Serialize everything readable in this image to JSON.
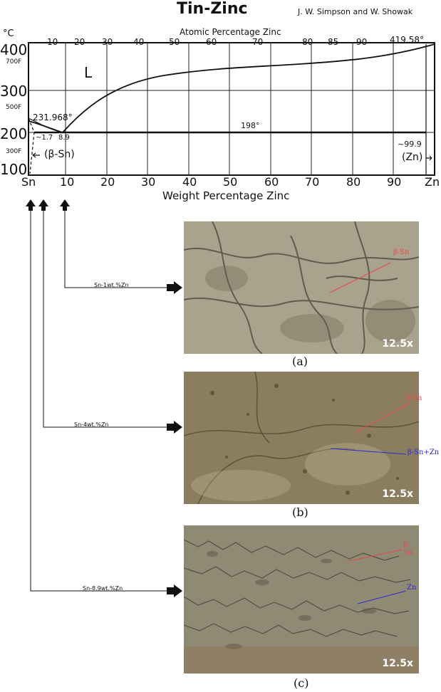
{
  "phase_diagram": {
    "title": "Tin-Zinc",
    "authors": "J. W. Simpson and W. Showak",
    "top_axis_label": "Atomic Percentage Zinc",
    "bottom_axis_label": "Weight Percentage Zinc",
    "top_ticks": [
      "10",
      "20",
      "30",
      "40",
      "50",
      "60",
      "70",
      "80",
      "85",
      "90"
    ],
    "bottom_ticks": [
      "Sn",
      "10",
      "20",
      "30",
      "40",
      "50",
      "60",
      "70",
      "80",
      "90",
      "Zn"
    ],
    "left_ticks": [
      "400",
      "300",
      "200",
      "100"
    ],
    "unit_celsius": "°C",
    "fahrenheit_ticks": [
      "700F",
      "500F",
      "300F"
    ],
    "labels": {
      "liquid": "L",
      "sn_melting": "231.968°",
      "zn_melting": "419.58°",
      "eutectic_temp": "198°",
      "sn_solvus": "~1.7",
      "eutectic_comp": "8.9",
      "zn_solvus": "~99.9",
      "beta_sn_phase": "(β-Sn)",
      "zn_phase": "(Zn)"
    }
  },
  "alloys": [
    {
      "label": "Sn-1wt.%Zn"
    },
    {
      "label": "Sn-4wt.%Zn"
    },
    {
      "label": "Sn-8.9wt.%Zn"
    }
  ],
  "micrographs": [
    {
      "caption": "(a)",
      "magnification": "12.5x",
      "annotations": [
        "β-Sn"
      ]
    },
    {
      "caption": "(b)",
      "magnification": "12.5x",
      "annotations": [
        "β-Sn",
        "β-Sn+Zn"
      ]
    },
    {
      "caption": "(c)",
      "magnification": "12.5x",
      "annotations": [
        "β-Sn",
        "Zn"
      ]
    }
  ],
  "colors": {
    "annotation_red": "#e8474b",
    "annotation_blue": "#2a2ad6",
    "photo_a": "#a9a38e",
    "photo_b": "#8a7e5e",
    "photo_c": "#8f8a73"
  }
}
